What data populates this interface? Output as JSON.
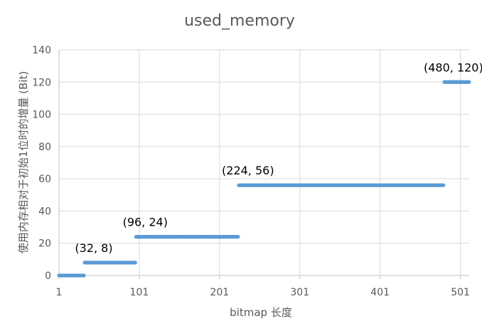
{
  "chart_data": {
    "type": "scatter",
    "title": "used_memory",
    "xlabel": "bitmap 长度",
    "ylabel": "使用内存相对于初始1位时的增量 (Bit)",
    "xlim": [
      1,
      512
    ],
    "ylim": [
      0,
      140
    ],
    "x_ticks": [
      1,
      101,
      201,
      301,
      401,
      501
    ],
    "y_ticks": [
      0,
      20,
      40,
      60,
      80,
      100,
      120,
      140
    ],
    "grid": true,
    "legend": "none",
    "series": [
      {
        "color": "#5b9bd5",
        "segments": [
          {
            "x_start": 1,
            "x_end": 32,
            "y": 0
          },
          {
            "x_start": 33,
            "x_end": 96,
            "y": 8
          },
          {
            "x_start": 97,
            "x_end": 224,
            "y": 24
          },
          {
            "x_start": 225,
            "x_end": 480,
            "y": 56
          },
          {
            "x_start": 481,
            "x_end": 512,
            "y": 120
          }
        ]
      }
    ],
    "annotations": [
      {
        "text": "(32, 8)",
        "x": 32,
        "y": 8
      },
      {
        "text": "(96, 24)",
        "x": 96,
        "y": 24
      },
      {
        "text": "(224, 56)",
        "x": 224,
        "y": 56
      },
      {
        "text": "(480, 120)",
        "x": 480,
        "y": 120
      }
    ]
  }
}
